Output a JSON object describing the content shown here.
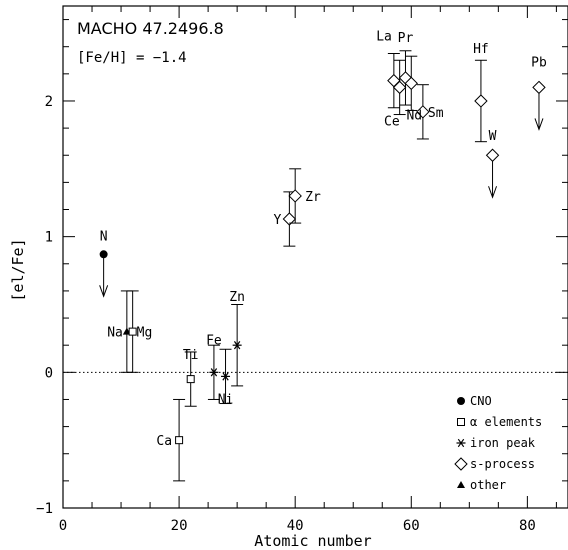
{
  "chart_data": {
    "type": "scatter",
    "title": "MACHO 47.2496.8",
    "subtitle": "[Fe/H] = −1.4",
    "xlabel": "Atomic number",
    "ylabel": "[el/Fe]",
    "xlim": [
      0,
      87
    ],
    "ylim": [
      -1,
      2.7
    ],
    "xticks": [
      0,
      20,
      40,
      60,
      80
    ],
    "yticks": [
      -1,
      0,
      1,
      2
    ],
    "reference_line": 0,
    "grid": false,
    "legend_position": "bottom-right",
    "legend": [
      {
        "label": "CNO",
        "marker": "circle"
      },
      {
        "label": "α elements",
        "marker": "square"
      },
      {
        "label": "iron peak",
        "marker": "asterisk"
      },
      {
        "label": "s-process",
        "marker": "diamond"
      },
      {
        "label": "other",
        "marker": "triangle"
      }
    ],
    "points": [
      {
        "element": "N",
        "z": 7,
        "value": 0.87,
        "group": "CNO",
        "upper_limit": true
      },
      {
        "element": "Na",
        "z": 11,
        "value": 0.3,
        "err": 0.3,
        "group": "other"
      },
      {
        "element": "Mg",
        "z": 12,
        "value": 0.3,
        "err": 0.3,
        "group": "alpha"
      },
      {
        "element": "Ca",
        "z": 20,
        "value": -0.5,
        "err": 0.3,
        "group": "alpha"
      },
      {
        "element": "Ti",
        "z": 22,
        "value": -0.05,
        "err": 0.2,
        "group": "alpha"
      },
      {
        "element": "Fe",
        "z": 26,
        "value": 0.0,
        "err": 0.2,
        "group": "iron"
      },
      {
        "element": "Ni",
        "z": 28,
        "value": -0.03,
        "err": 0.2,
        "group": "iron"
      },
      {
        "element": "Zn",
        "z": 30,
        "value": 0.2,
        "err": 0.3,
        "group": "iron"
      },
      {
        "element": "Y",
        "z": 39,
        "value": 1.13,
        "err": 0.2,
        "group": "s-process"
      },
      {
        "element": "Zr",
        "z": 40,
        "value": 1.3,
        "err": 0.2,
        "group": "s-process"
      },
      {
        "element": "La",
        "z": 57,
        "value": 2.15,
        "err": 0.2,
        "group": "s-process"
      },
      {
        "element": "Ce",
        "z": 58,
        "value": 2.1,
        "err": 0.2,
        "group": "s-process"
      },
      {
        "element": "Pr",
        "z": 59,
        "value": 2.17,
        "err": 0.2,
        "group": "s-process"
      },
      {
        "element": "Nd",
        "z": 60,
        "value": 2.13,
        "err": 0.2,
        "group": "s-process"
      },
      {
        "element": "Sm",
        "z": 62,
        "value": 1.92,
        "err": 0.2,
        "group": "s-process"
      },
      {
        "element": "Hf",
        "z": 72,
        "value": 2.0,
        "err": 0.3,
        "group": "s-process"
      },
      {
        "element": "W",
        "z": 74,
        "value": 1.6,
        "group": "s-process",
        "upper_limit": true
      },
      {
        "element": "Pb",
        "z": 82,
        "value": 2.1,
        "group": "s-process",
        "upper_limit": true
      }
    ]
  }
}
